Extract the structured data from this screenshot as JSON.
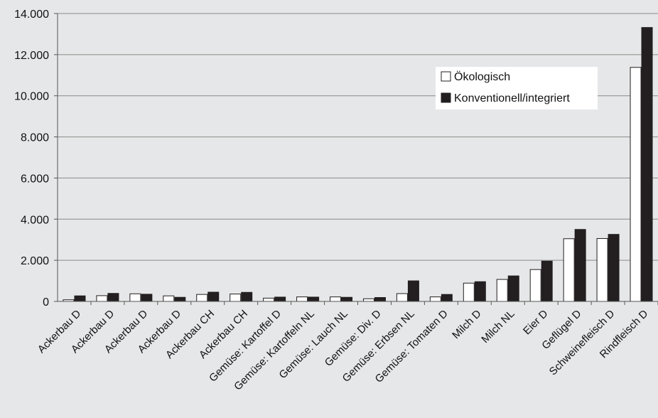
{
  "chart_data": {
    "type": "bar",
    "title": "",
    "xlabel": "",
    "ylabel": "",
    "ylim": [
      0,
      14000
    ],
    "yticks": [
      0,
      2000,
      4000,
      6000,
      8000,
      10000,
      12000,
      14000
    ],
    "ytick_labels": [
      "0",
      "2.000",
      "4.000",
      "6.000",
      "8.000",
      "10.000",
      "12.000",
      "14.000"
    ],
    "grid": true,
    "legend_position": "top-right",
    "categories": [
      "Ackerbau D",
      "Ackerbau D",
      "Ackerbau D",
      "Ackerbau D",
      "Ackerbau CH",
      "Ackerbau CH",
      "Gemüse: Kartoffel D",
      "Gemüse: Kartoffeln NL",
      "Gemüse: Lauch NL",
      "Gemüse: Div.  D",
      "Gemüse: Erbsen NL",
      "Gemüse: Tomaten D",
      "Milch D",
      "Milch NL",
      "Eier D",
      "Geflügel D",
      "Schweinefleisch D",
      "Rindfleisch D"
    ],
    "series": [
      {
        "name": "Ökologisch",
        "color": "#ffffff",
        "values": [
          80,
          280,
          370,
          270,
          340,
          360,
          160,
          220,
          220,
          130,
          380,
          220,
          890,
          1070,
          1550,
          3050,
          3060,
          11380
        ]
      },
      {
        "name": "Konventionell/integriert",
        "color": "#231f20",
        "values": [
          270,
          390,
          350,
          200,
          450,
          440,
          210,
          210,
          200,
          190,
          1000,
          340,
          960,
          1240,
          1960,
          3500,
          3260,
          13320
        ]
      }
    ]
  }
}
